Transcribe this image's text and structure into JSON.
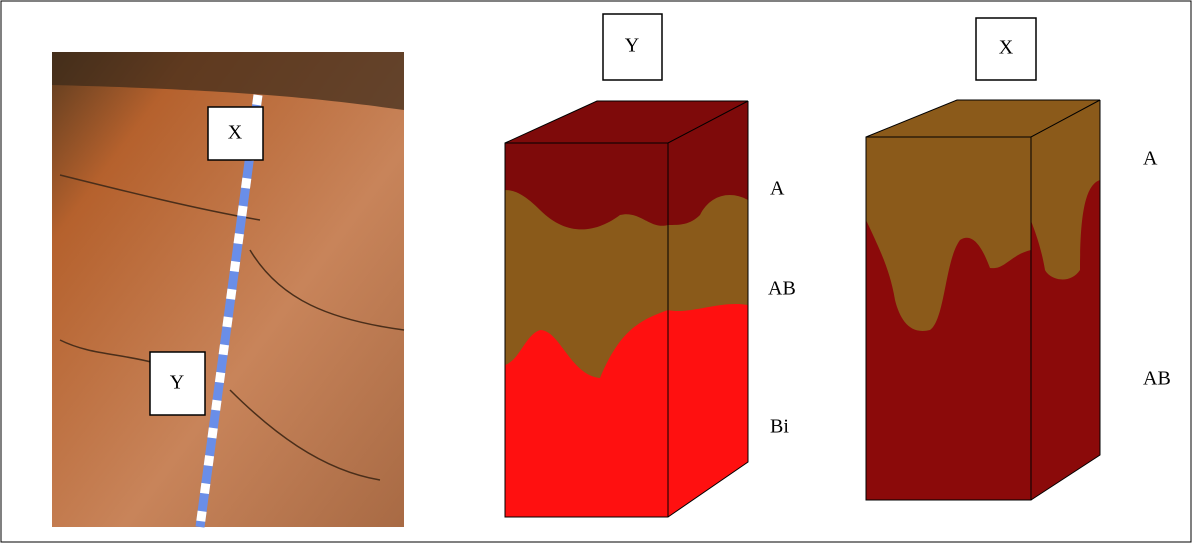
{
  "photo": {
    "labels": [
      "X",
      "Y"
    ]
  },
  "blocks": [
    {
      "label": "Y",
      "horizons": [
        "A",
        "AB",
        "Bi"
      ]
    },
    {
      "label": "X",
      "horizons": [
        "A",
        "AB"
      ]
    }
  ]
}
